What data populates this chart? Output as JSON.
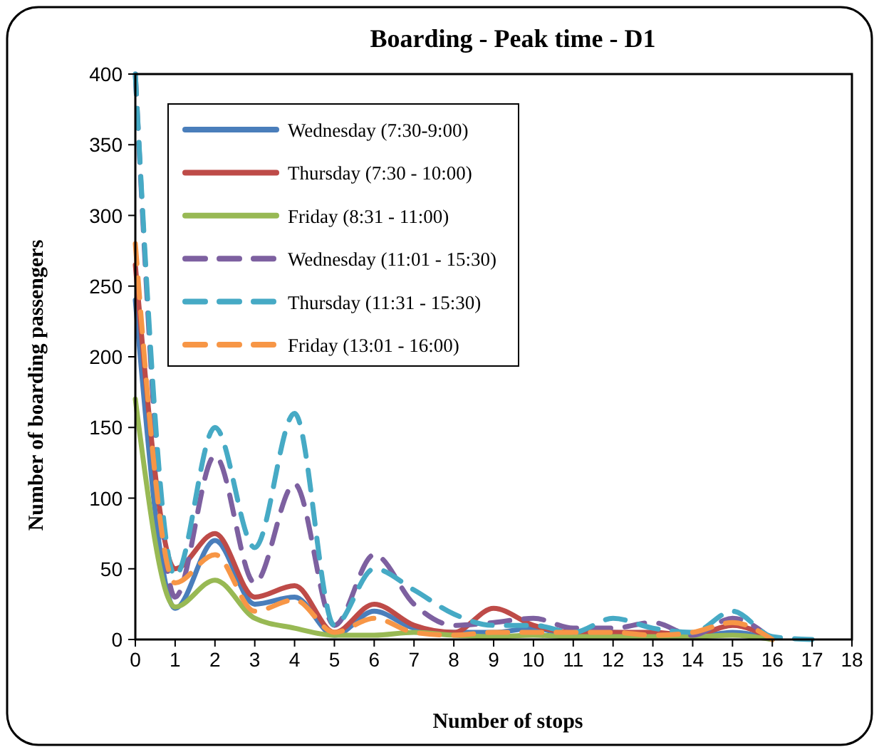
{
  "chart_data": {
    "type": "line",
    "title": "Boarding - Peak time - D1",
    "xlabel": "Number of stops",
    "ylabel": "Number of boarding passengers",
    "x": [
      0,
      1,
      2,
      3,
      4,
      5,
      6,
      7,
      8,
      9,
      10,
      11,
      12,
      13,
      14,
      15,
      16,
      17
    ],
    "xlim": [
      0,
      18
    ],
    "xticks": [
      0,
      1,
      2,
      3,
      4,
      5,
      6,
      7,
      8,
      9,
      10,
      11,
      12,
      13,
      14,
      15,
      16,
      17,
      18
    ],
    "ylim": [
      0,
      400
    ],
    "yticks": [
      0,
      50,
      100,
      150,
      200,
      250,
      300,
      350,
      400
    ],
    "grid": false,
    "legend": "top left",
    "marker": "none",
    "series": [
      {
        "name": "Wednesday (7:30-9:00)",
        "color": "#4a7ebb",
        "line_style": "solid",
        "values": [
          240,
          22,
          70,
          25,
          30,
          3,
          20,
          8,
          5,
          5,
          8,
          3,
          5,
          3,
          2,
          5,
          0,
          null
        ]
      },
      {
        "name": "Thursday (7:30 - 10:00)",
        "color": "#be4b48",
        "line_style": "solid",
        "values": [
          265,
          50,
          75,
          30,
          38,
          5,
          25,
          10,
          5,
          22,
          10,
          5,
          5,
          5,
          3,
          10,
          0,
          null
        ]
      },
      {
        "name": "Friday (8:31 - 11:00)",
        "color": "#98b954",
        "line_style": "solid",
        "values": [
          170,
          23,
          42,
          15,
          8,
          3,
          3,
          5,
          3,
          2,
          3,
          2,
          2,
          2,
          2,
          3,
          0,
          null
        ]
      },
      {
        "name": "Wednesday (11:01 - 15:30)",
        "color": "#7d60a0",
        "line_style": "dashed",
        "values": [
          400,
          30,
          130,
          40,
          110,
          10,
          60,
          25,
          10,
          12,
          15,
          8,
          8,
          12,
          3,
          15,
          0,
          null
        ]
      },
      {
        "name": "Thursday (11:31 - 15:30)",
        "color": "#46aac5",
        "line_style": "dashed",
        "values": [
          400,
          45,
          150,
          65,
          160,
          10,
          50,
          35,
          18,
          10,
          10,
          5,
          15,
          8,
          5,
          20,
          2,
          0
        ]
      },
      {
        "name": "Friday (13:01 - 16:00)",
        "color": "#f79646",
        "line_style": "dashed",
        "values": [
          280,
          40,
          60,
          20,
          28,
          5,
          15,
          5,
          3,
          5,
          5,
          5,
          5,
          3,
          5,
          12,
          0,
          null
        ]
      }
    ]
  }
}
